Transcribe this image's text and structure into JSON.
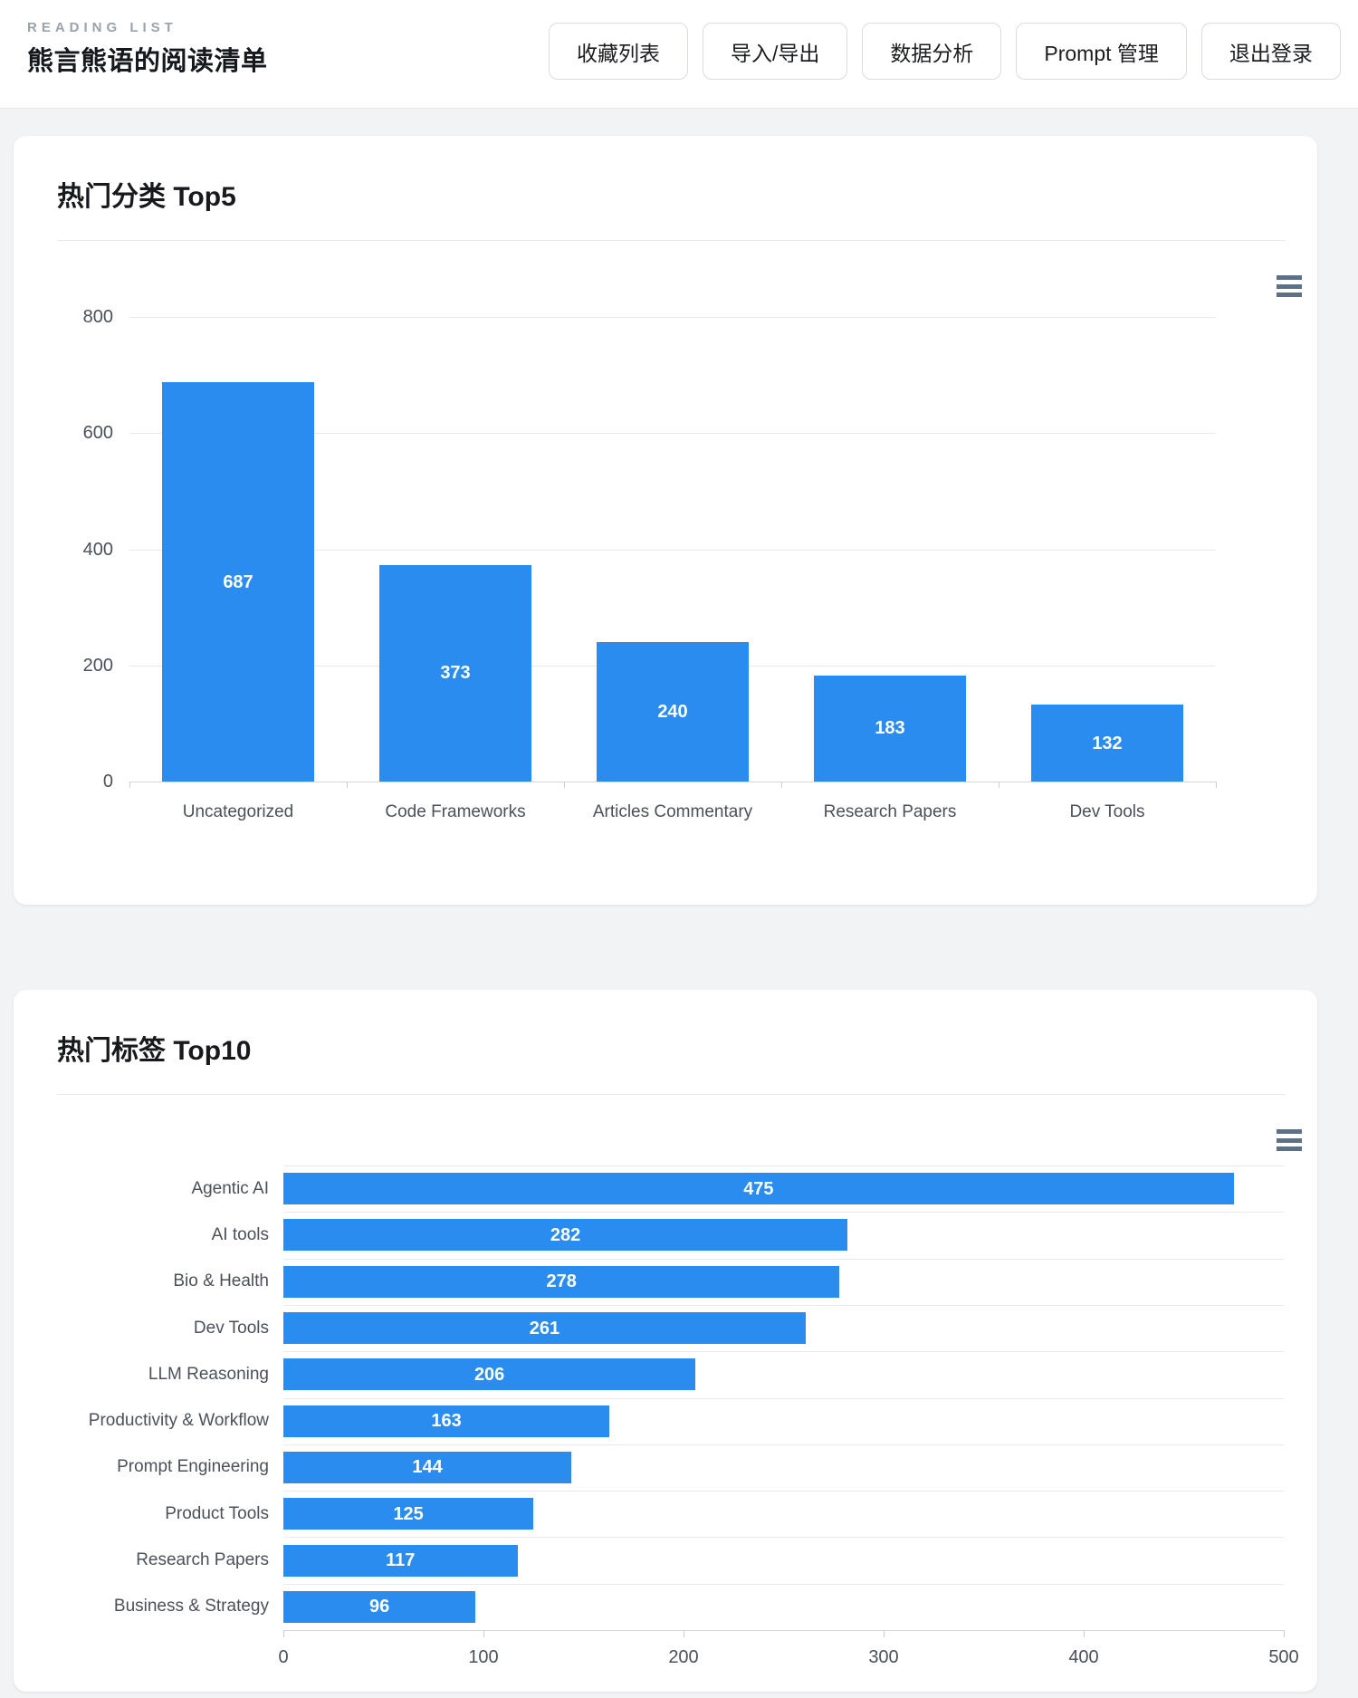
{
  "header": {
    "eyebrow": "READING LIST",
    "title": "熊言熊语的阅读清单",
    "nav_buttons": [
      {
        "name": "favorites-list-button",
        "label": "收藏列表"
      },
      {
        "name": "import-export-button",
        "label": "导入/导出"
      },
      {
        "name": "data-analysis-button",
        "label": "数据分析"
      },
      {
        "name": "prompt-management-button",
        "label": "Prompt 管理"
      },
      {
        "name": "logout-button",
        "label": "退出登录"
      }
    ]
  },
  "colors": {
    "bar_blue": "#2a8cee",
    "toolbox_icon": "#5b7187",
    "gridline": "#e9eaec",
    "axis_line": "#d4d6da",
    "axis_tick": "#c9ccd1"
  },
  "chart_data": [
    {
      "type": "bar",
      "orientation": "vertical",
      "title": "热门分类 Top5",
      "categories": [
        "Uncategorized",
        "Code Frameworks",
        "Articles Commentary",
        "Research Papers",
        "Dev Tools"
      ],
      "values": [
        687,
        373,
        240,
        183,
        132
      ],
      "y_ticks": [
        0,
        200,
        400,
        600,
        800
      ],
      "ylim": [
        0,
        800
      ],
      "grid": true,
      "legend": "none",
      "value_label_position": "inside-middle",
      "toolbox": "data-view"
    },
    {
      "type": "bar",
      "orientation": "horizontal",
      "title": "热门标签 Top10",
      "categories": [
        "Agentic AI",
        "AI tools",
        "Bio & Health",
        "Dev Tools",
        "LLM Reasoning",
        "Productivity & Workflow",
        "Prompt Engineering",
        "Product Tools",
        "Research Papers",
        "Business & Strategy"
      ],
      "values": [
        475,
        282,
        278,
        261,
        206,
        163,
        144,
        125,
        117,
        96
      ],
      "x_ticks": [
        0,
        100,
        200,
        300,
        400,
        500
      ],
      "xlim": [
        0,
        500
      ],
      "grid": true,
      "legend": "none",
      "value_label_position": "inside-center",
      "toolbox": "data-view"
    }
  ]
}
